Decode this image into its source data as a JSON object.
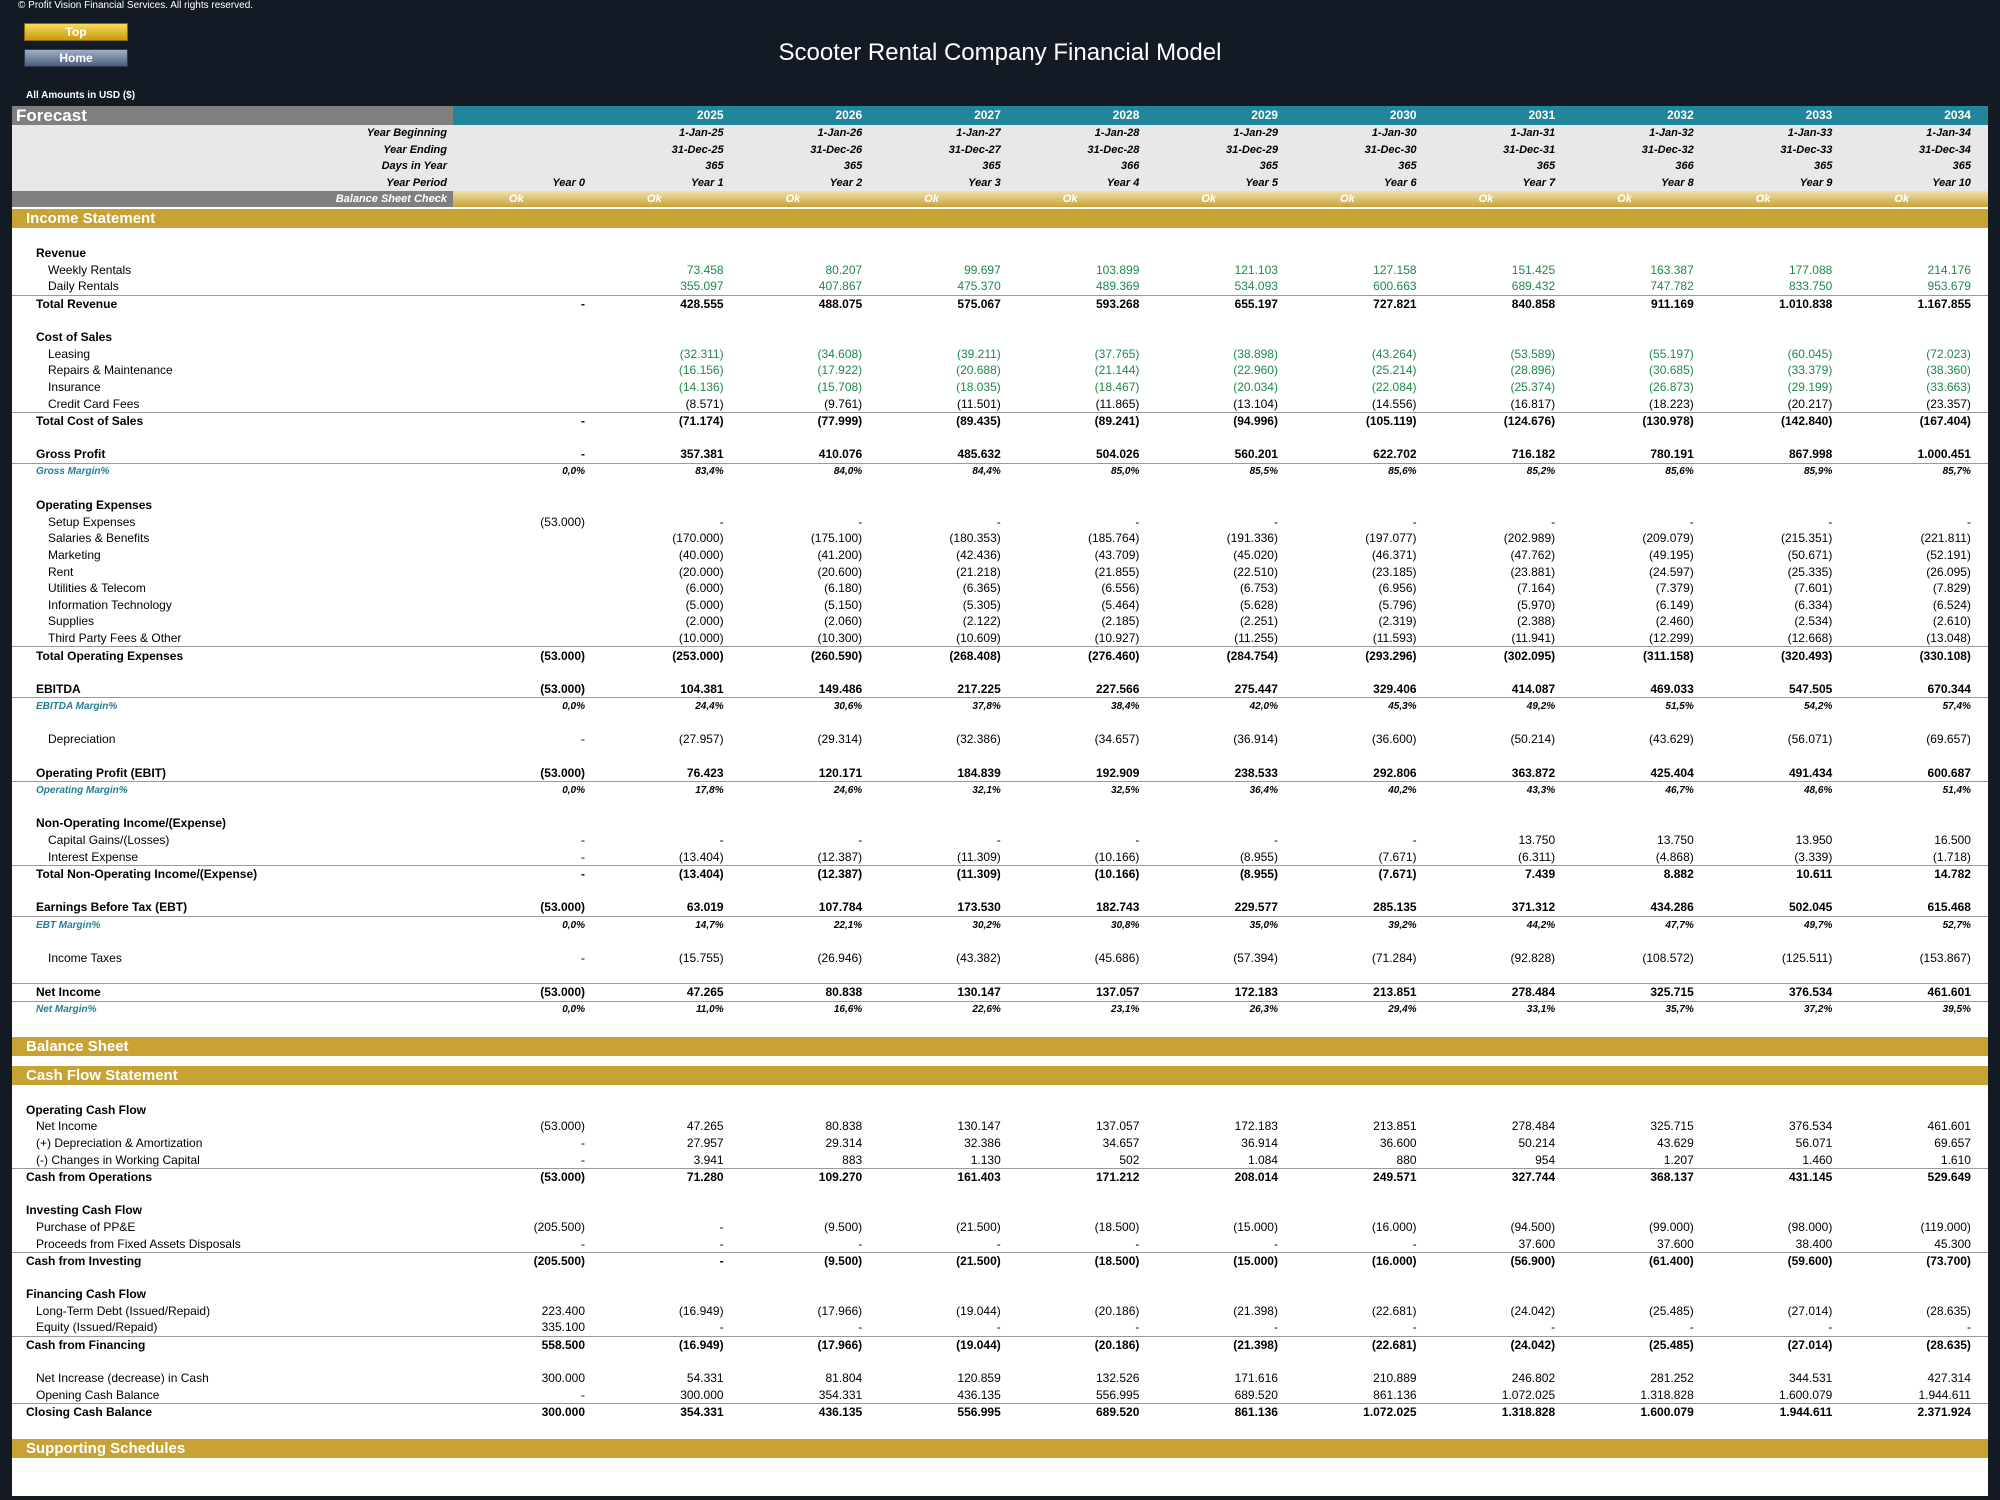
{
  "copyright": "© Profit Vision Financial Services. All rights reserved.",
  "nav": {
    "top_label": "Top",
    "home_label": "Home"
  },
  "title": "Scooter Rental Company Financial Model",
  "amounts_note": "All Amounts in  USD ($)",
  "forecast_label": "Forecast",
  "years": [
    "2025",
    "2026",
    "2027",
    "2028",
    "2029",
    "2030",
    "2031",
    "2032",
    "2033",
    "2034"
  ],
  "meta": {
    "year_beginning": {
      "label": "Year Beginning",
      "y0": "",
      "values": [
        "1-Jan-25",
        "1-Jan-26",
        "1-Jan-27",
        "1-Jan-28",
        "1-Jan-29",
        "1-Jan-30",
        "1-Jan-31",
        "1-Jan-32",
        "1-Jan-33",
        "1-Jan-34"
      ]
    },
    "year_ending": {
      "label": "Year Ending",
      "y0": "",
      "values": [
        "31-Dec-25",
        "31-Dec-26",
        "31-Dec-27",
        "31-Dec-28",
        "31-Dec-29",
        "31-Dec-30",
        "31-Dec-31",
        "31-Dec-32",
        "31-Dec-33",
        "31-Dec-34"
      ]
    },
    "days_in_year": {
      "label": "Days in Year",
      "y0": "",
      "values": [
        "365",
        "365",
        "365",
        "366",
        "365",
        "365",
        "365",
        "366",
        "365",
        "365"
      ]
    },
    "year_period": {
      "label": "Year Period",
      "y0": "Year 0",
      "values": [
        "Year 1",
        "Year 2",
        "Year 3",
        "Year 4",
        "Year 5",
        "Year 6",
        "Year 7",
        "Year 8",
        "Year 9",
        "Year 10"
      ]
    }
  },
  "balance_check": {
    "label": "Balance Sheet Check",
    "values": [
      "Ok",
      "Ok",
      "Ok",
      "Ok",
      "Ok",
      "Ok",
      "Ok",
      "Ok",
      "Ok",
      "Ok",
      "Ok"
    ]
  },
  "sections": {
    "income": "Income Statement",
    "balance": "Balance Sheet",
    "cashflow": "Cash Flow Statement",
    "supporting": "Supporting Schedules"
  },
  "income_rows": [
    {
      "type": "gap"
    },
    {
      "type": "hdr",
      "label": "Revenue",
      "y0": "",
      "values": [
        "",
        "",
        "",
        "",
        "",
        "",
        "",
        "",
        "",
        ""
      ]
    },
    {
      "type": "sub",
      "green": true,
      "label": "Weekly Rentals",
      "y0": "",
      "values": [
        "73.458",
        "80.207",
        "99.697",
        "103.899",
        "121.103",
        "127.158",
        "151.425",
        "163.387",
        "177.088",
        "214.176"
      ]
    },
    {
      "type": "sub",
      "green": true,
      "label": "Daily Rentals",
      "y0": "",
      "values": [
        "355.097",
        "407.867",
        "475.370",
        "489.369",
        "534.093",
        "600.663",
        "689.432",
        "747.782",
        "833.750",
        "953.679"
      ]
    },
    {
      "type": "tot",
      "label": "Total Revenue",
      "y0": "-",
      "values": [
        "428.555",
        "488.075",
        "575.067",
        "593.268",
        "655.197",
        "727.821",
        "840.858",
        "911.169",
        "1.010.838",
        "1.167.855"
      ]
    },
    {
      "type": "gap"
    },
    {
      "type": "hdr",
      "label": "Cost of Sales",
      "y0": "",
      "values": [
        "",
        "",
        "",
        "",
        "",
        "",
        "",
        "",
        "",
        ""
      ]
    },
    {
      "type": "sub",
      "green": true,
      "label": "Leasing",
      "y0": "",
      "values": [
        "(32.311)",
        "(34.608)",
        "(39.211)",
        "(37.765)",
        "(38.898)",
        "(43.264)",
        "(53.589)",
        "(55.197)",
        "(60.045)",
        "(72.023)"
      ]
    },
    {
      "type": "sub",
      "green": true,
      "label": "Repairs & Maintenance",
      "y0": "",
      "values": [
        "(16.156)",
        "(17.922)",
        "(20.688)",
        "(21.144)",
        "(22.960)",
        "(25.214)",
        "(28.896)",
        "(30.685)",
        "(33.379)",
        "(38.360)"
      ]
    },
    {
      "type": "sub",
      "green": true,
      "label": "Insurance",
      "y0": "",
      "values": [
        "(14.136)",
        "(15.708)",
        "(18.035)",
        "(18.467)",
        "(20.034)",
        "(22.084)",
        "(25.374)",
        "(26.873)",
        "(29.199)",
        "(33.663)"
      ]
    },
    {
      "type": "sub",
      "label": "Credit Card Fees",
      "y0": "",
      "values": [
        "(8.571)",
        "(9.761)",
        "(11.501)",
        "(11.865)",
        "(13.104)",
        "(14.556)",
        "(16.817)",
        "(18.223)",
        "(20.217)",
        "(23.357)"
      ]
    },
    {
      "type": "tot",
      "label": "Total Cost of Sales",
      "y0": "-",
      "values": [
        "(71.174)",
        "(77.999)",
        "(89.435)",
        "(89.241)",
        "(94.996)",
        "(105.119)",
        "(124.676)",
        "(130.978)",
        "(142.840)",
        "(167.404)"
      ]
    },
    {
      "type": "gap"
    },
    {
      "type": "hdrb",
      "label": "Gross Profit",
      "y0": "-",
      "values": [
        "357.381",
        "410.076",
        "485.632",
        "504.026",
        "560.201",
        "622.702",
        "716.182",
        "780.191",
        "867.998",
        "1.000.451"
      ]
    },
    {
      "type": "margin",
      "label": "Gross Margin%",
      "y0": "0,0%",
      "values": [
        "83,4%",
        "84,0%",
        "84,4%",
        "85,0%",
        "85,5%",
        "85,6%",
        "85,2%",
        "85,6%",
        "85,9%",
        "85,7%"
      ]
    },
    {
      "type": "gap"
    },
    {
      "type": "hdr",
      "label": "Operating Expenses",
      "y0": "",
      "values": [
        "",
        "",
        "",
        "",
        "",
        "",
        "",
        "",
        "",
        ""
      ]
    },
    {
      "type": "sub",
      "label": "Setup Expenses",
      "y0": "(53.000)",
      "values": [
        "-",
        "-",
        "-",
        "-",
        "-",
        "-",
        "-",
        "-",
        "-",
        "-"
      ]
    },
    {
      "type": "sub",
      "label": "Salaries & Benefits",
      "y0": "",
      "values": [
        "(170.000)",
        "(175.100)",
        "(180.353)",
        "(185.764)",
        "(191.336)",
        "(197.077)",
        "(202.989)",
        "(209.079)",
        "(215.351)",
        "(221.811)"
      ]
    },
    {
      "type": "sub",
      "label": "Marketing",
      "y0": "",
      "values": [
        "(40.000)",
        "(41.200)",
        "(42.436)",
        "(43.709)",
        "(45.020)",
        "(46.371)",
        "(47.762)",
        "(49.195)",
        "(50.671)",
        "(52.191)"
      ]
    },
    {
      "type": "sub",
      "label": "Rent",
      "y0": "",
      "values": [
        "(20.000)",
        "(20.600)",
        "(21.218)",
        "(21.855)",
        "(22.510)",
        "(23.185)",
        "(23.881)",
        "(24.597)",
        "(25.335)",
        "(26.095)"
      ]
    },
    {
      "type": "sub",
      "label": "Utilities & Telecom",
      "y0": "",
      "values": [
        "(6.000)",
        "(6.180)",
        "(6.365)",
        "(6.556)",
        "(6.753)",
        "(6.956)",
        "(7.164)",
        "(7.379)",
        "(7.601)",
        "(7.829)"
      ]
    },
    {
      "type": "sub",
      "label": "Information Technology",
      "y0": "",
      "values": [
        "(5.000)",
        "(5.150)",
        "(5.305)",
        "(5.464)",
        "(5.628)",
        "(5.796)",
        "(5.970)",
        "(6.149)",
        "(6.334)",
        "(6.524)"
      ]
    },
    {
      "type": "sub",
      "label": "Supplies",
      "y0": "",
      "values": [
        "(2.000)",
        "(2.060)",
        "(2.122)",
        "(2.185)",
        "(2.251)",
        "(2.319)",
        "(2.388)",
        "(2.460)",
        "(2.534)",
        "(2.610)"
      ]
    },
    {
      "type": "sub",
      "label": "Third Party Fees & Other",
      "y0": "",
      "values": [
        "(10.000)",
        "(10.300)",
        "(10.609)",
        "(10.927)",
        "(11.255)",
        "(11.593)",
        "(11.941)",
        "(12.299)",
        "(12.668)",
        "(13.048)"
      ]
    },
    {
      "type": "tot",
      "label": "Total Operating Expenses",
      "y0": "(53.000)",
      "values": [
        "(253.000)",
        "(260.590)",
        "(268.408)",
        "(276.460)",
        "(284.754)",
        "(293.296)",
        "(302.095)",
        "(311.158)",
        "(320.493)",
        "(330.108)"
      ]
    },
    {
      "type": "gap"
    },
    {
      "type": "hdrb",
      "label": "EBITDA",
      "y0": "(53.000)",
      "values": [
        "104.381",
        "149.486",
        "217.225",
        "227.566",
        "275.447",
        "329.406",
        "414.087",
        "469.033",
        "547.505",
        "670.344"
      ]
    },
    {
      "type": "margin",
      "label": "EBITDA Margin%",
      "y0": "0,0%",
      "values": [
        "24,4%",
        "30,6%",
        "37,8%",
        "38,4%",
        "42,0%",
        "45,3%",
        "49,2%",
        "51,5%",
        "54,2%",
        "57,4%"
      ]
    },
    {
      "type": "gap"
    },
    {
      "type": "sub",
      "label": "Depreciation",
      "y0": "-",
      "values": [
        "(27.957)",
        "(29.314)",
        "(32.386)",
        "(34.657)",
        "(36.914)",
        "(36.600)",
        "(50.214)",
        "(43.629)",
        "(56.071)",
        "(69.657)"
      ]
    },
    {
      "type": "gap"
    },
    {
      "type": "hdrb",
      "label": "Operating Profit (EBIT)",
      "y0": "(53.000)",
      "values": [
        "76.423",
        "120.171",
        "184.839",
        "192.909",
        "238.533",
        "292.806",
        "363.872",
        "425.404",
        "491.434",
        "600.687"
      ]
    },
    {
      "type": "margin",
      "label": "Operating Margin%",
      "y0": "0,0%",
      "values": [
        "17,8%",
        "24,6%",
        "32,1%",
        "32,5%",
        "36,4%",
        "40,2%",
        "43,3%",
        "46,7%",
        "48,6%",
        "51,4%"
      ]
    },
    {
      "type": "gap"
    },
    {
      "type": "hdr",
      "label": "Non-Operating Income/(Expense)",
      "y0": "",
      "values": [
        "",
        "",
        "",
        "",
        "",
        "",
        "",
        "",
        "",
        ""
      ]
    },
    {
      "type": "sub",
      "label": "Capital Gains/(Losses)",
      "y0": "-",
      "values": [
        "-",
        "-",
        "-",
        "-",
        "-",
        "-",
        "13.750",
        "13.750",
        "13.950",
        "16.500"
      ]
    },
    {
      "type": "sub",
      "label": "Interest Expense",
      "y0": "-",
      "values": [
        "(13.404)",
        "(12.387)",
        "(11.309)",
        "(10.166)",
        "(8.955)",
        "(7.671)",
        "(6.311)",
        "(4.868)",
        "(3.339)",
        "(1.718)"
      ]
    },
    {
      "type": "tot",
      "label": "Total Non-Operating Income/(Expense)",
      "y0": "-",
      "values": [
        "(13.404)",
        "(12.387)",
        "(11.309)",
        "(10.166)",
        "(8.955)",
        "(7.671)",
        "7.439",
        "8.882",
        "10.611",
        "14.782"
      ]
    },
    {
      "type": "gap"
    },
    {
      "type": "hdrb",
      "label": "Earnings Before Tax (EBT)",
      "y0": "(53.000)",
      "values": [
        "63.019",
        "107.784",
        "173.530",
        "182.743",
        "229.577",
        "285.135",
        "371.312",
        "434.286",
        "502.045",
        "615.468"
      ]
    },
    {
      "type": "margin",
      "label": "EBT Margin%",
      "y0": "0,0%",
      "values": [
        "14,7%",
        "22,1%",
        "30,2%",
        "30,8%",
        "35,0%",
        "39,2%",
        "44,2%",
        "47,7%",
        "49,7%",
        "52,7%"
      ]
    },
    {
      "type": "gap"
    },
    {
      "type": "sub",
      "label": "Income Taxes",
      "y0": "-",
      "values": [
        "(15.755)",
        "(26.946)",
        "(43.382)",
        "(45.686)",
        "(57.394)",
        "(71.284)",
        "(92.828)",
        "(108.572)",
        "(125.511)",
        "(153.867)"
      ]
    },
    {
      "type": "gap"
    },
    {
      "type": "tot",
      "label": "Net Income",
      "y0": "(53.000)",
      "values": [
        "47.265",
        "80.838",
        "130.147",
        "137.057",
        "172.183",
        "213.851",
        "278.484",
        "325.715",
        "376.534",
        "461.601"
      ]
    },
    {
      "type": "margin",
      "label": "Net Margin%",
      "y0": "0,0%",
      "values": [
        "11,0%",
        "16,6%",
        "22,6%",
        "23,1%",
        "26,3%",
        "29,4%",
        "33,1%",
        "35,7%",
        "37,2%",
        "39,5%"
      ]
    }
  ],
  "cashflow_rows": [
    {
      "type": "gap"
    },
    {
      "type": "cfhdr",
      "label": "Operating Cash Flow",
      "y0": "",
      "values": [
        "",
        "",
        "",
        "",
        "",
        "",
        "",
        "",
        "",
        ""
      ]
    },
    {
      "type": "cfsub",
      "label": "Net Income",
      "y0": "(53.000)",
      "values": [
        "47.265",
        "80.838",
        "130.147",
        "137.057",
        "172.183",
        "213.851",
        "278.484",
        "325.715",
        "376.534",
        "461.601"
      ]
    },
    {
      "type": "cfsub",
      "label": "(+) Depreciation & Amortization",
      "y0": "-",
      "values": [
        "27.957",
        "29.314",
        "32.386",
        "34.657",
        "36.914",
        "36.600",
        "50.214",
        "43.629",
        "56.071",
        "69.657"
      ]
    },
    {
      "type": "cfsub",
      "label": "(-) Changes in Working Capital",
      "y0": "-",
      "values": [
        "3.941",
        "883",
        "1.130",
        "502",
        "1.084",
        "880",
        "954",
        "1.207",
        "1.460",
        "1.610"
      ]
    },
    {
      "type": "cftot",
      "label": "Cash from Operations",
      "y0": "(53.000)",
      "values": [
        "71.280",
        "109.270",
        "161.403",
        "171.212",
        "208.014",
        "249.571",
        "327.744",
        "368.137",
        "431.145",
        "529.649"
      ]
    },
    {
      "type": "gap"
    },
    {
      "type": "cfhdr",
      "label": "Investing Cash Flow",
      "y0": "",
      "values": [
        "",
        "",
        "",
        "",
        "",
        "",
        "",
        "",
        "",
        ""
      ]
    },
    {
      "type": "cfsub",
      "label": "Purchase of PP&E",
      "y0": "(205.500)",
      "values": [
        "-",
        "(9.500)",
        "(21.500)",
        "(18.500)",
        "(15.000)",
        "(16.000)",
        "(94.500)",
        "(99.000)",
        "(98.000)",
        "(119.000)"
      ]
    },
    {
      "type": "cfsub",
      "label": "Proceeds from Fixed Assets Disposals",
      "y0": "-",
      "values": [
        "-",
        "-",
        "-",
        "-",
        "-",
        "-",
        "37.600",
        "37.600",
        "38.400",
        "45.300"
      ]
    },
    {
      "type": "cftot",
      "label": "Cash from Investing",
      "y0": "(205.500)",
      "values": [
        "-",
        "(9.500)",
        "(21.500)",
        "(18.500)",
        "(15.000)",
        "(16.000)",
        "(56.900)",
        "(61.400)",
        "(59.600)",
        "(73.700)"
      ]
    },
    {
      "type": "gap"
    },
    {
      "type": "cfhdr",
      "label": "Financing Cash Flow",
      "y0": "",
      "values": [
        "",
        "",
        "",
        "",
        "",
        "",
        "",
        "",
        "",
        ""
      ]
    },
    {
      "type": "cfsub",
      "label": "Long-Term Debt (Issued/Repaid)",
      "y0": "223.400",
      "values": [
        "(16.949)",
        "(17.966)",
        "(19.044)",
        "(20.186)",
        "(21.398)",
        "(22.681)",
        "(24.042)",
        "(25.485)",
        "(27.014)",
        "(28.635)"
      ]
    },
    {
      "type": "cfsub",
      "label": "Equity (Issued/Repaid)",
      "y0": "335.100",
      "values": [
        "-",
        "-",
        "-",
        "-",
        "-",
        "-",
        "-",
        "-",
        "-",
        "-"
      ]
    },
    {
      "type": "cftot",
      "label": "Cash from Financing",
      "y0": "558.500",
      "values": [
        "(16.949)",
        "(17.966)",
        "(19.044)",
        "(20.186)",
        "(21.398)",
        "(22.681)",
        "(24.042)",
        "(25.485)",
        "(27.014)",
        "(28.635)"
      ]
    },
    {
      "type": "gap"
    },
    {
      "type": "cfsub",
      "label": "Net Increase (decrease) in Cash",
      "y0": "300.000",
      "values": [
        "54.331",
        "81.804",
        "120.859",
        "132.526",
        "171.616",
        "210.889",
        "246.802",
        "281.252",
        "344.531",
        "427.314"
      ]
    },
    {
      "type": "cfsub",
      "label": "Opening Cash Balance",
      "y0": "-",
      "values": [
        "300.000",
        "354.331",
        "436.135",
        "556.995",
        "689.520",
        "861.136",
        "1.072.025",
        "1.318.828",
        "1.600.079",
        "1.944.611"
      ]
    },
    {
      "type": "cftot",
      "label": "Closing Cash Balance",
      "y0": "300.000",
      "values": [
        "354.331",
        "436.135",
        "556.995",
        "689.520",
        "861.136",
        "1.072.025",
        "1.318.828",
        "1.600.079",
        "1.944.611",
        "2.371.924"
      ]
    }
  ]
}
